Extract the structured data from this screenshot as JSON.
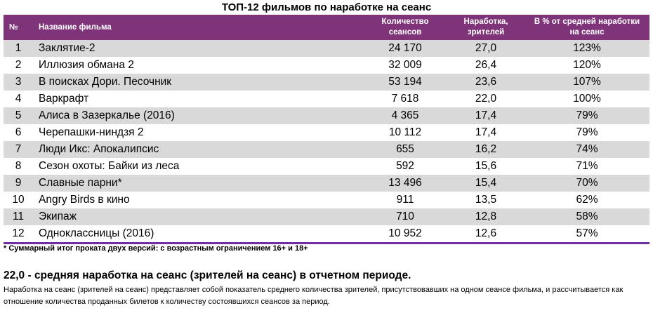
{
  "title": "ТОП-12 фильмов по наработке на сеанс",
  "table": {
    "headers": {
      "num": "№",
      "name": "Название фильма",
      "sessions_line1": "Количество",
      "sessions_line2": "сеансов",
      "avg_line1": "Наработка,",
      "avg_line2": "зрителей",
      "pct_line1": "В % от средней наработки",
      "pct_line2": "на сеанс"
    },
    "rows": [
      {
        "num": "1",
        "name": "Заклятие-2",
        "sessions": "24 170",
        "avg": "27,0",
        "pct": "123%"
      },
      {
        "num": "2",
        "name": "Иллюзия обмана 2",
        "sessions": "32 009",
        "avg": "26,4",
        "pct": "120%"
      },
      {
        "num": "3",
        "name": "В поисках Дори. Песочник",
        "sessions": "53 194",
        "avg": "23,6",
        "pct": "107%"
      },
      {
        "num": "4",
        "name": "Варкрафт",
        "sessions": "7 618",
        "avg": "22,0",
        "pct": "100%"
      },
      {
        "num": "5",
        "name": "Алиса в Зазеркалье (2016)",
        "sessions": "4 365",
        "avg": "17,4",
        "pct": "79%"
      },
      {
        "num": "6",
        "name": "Черепашки-ниндзя 2",
        "sessions": "10 112",
        "avg": "17,4",
        "pct": "79%"
      },
      {
        "num": "7",
        "name": "Люди Икс: Апокалипсис",
        "sessions": "655",
        "avg": "16,2",
        "pct": "74%"
      },
      {
        "num": "8",
        "name": "Сезон охоты: Байки из леса",
        "sessions": "592",
        "avg": "15,6",
        "pct": "71%"
      },
      {
        "num": "9",
        "name": "Славные парни*",
        "sessions": "13 496",
        "avg": "15,4",
        "pct": "70%"
      },
      {
        "num": "10",
        "name": "Angry Birds в кино",
        "sessions": "911",
        "avg": "13,5",
        "pct": "62%"
      },
      {
        "num": "11",
        "name": "Экипаж",
        "sessions": "710",
        "avg": "12,8",
        "pct": "58%"
      },
      {
        "num": "12",
        "name": "Одноклассницы (2016)",
        "sessions": "10 952",
        "avg": "12,6",
        "pct": "57%"
      }
    ]
  },
  "footnote": "* Суммарный итог проката двух версий: с возрастным ограничением 16+ и 18+",
  "summary": "22,0 - средняя наработка на сеанс (зрителей на сеанс) в отчетном периоде.",
  "description": "Наработка на сеанс (зрителей на сеанс) представляет собой показатель среднего количества зрителей, присутствовавших на одном сеансе фильма, и рассчитывается как отношение количества проданных билетов к количеству состоявшихся сеансов за период.",
  "colors": {
    "header_bg": "#7f3379",
    "row_alt_bg": "#d9d9d9",
    "bottom_border": "#7030a0"
  }
}
